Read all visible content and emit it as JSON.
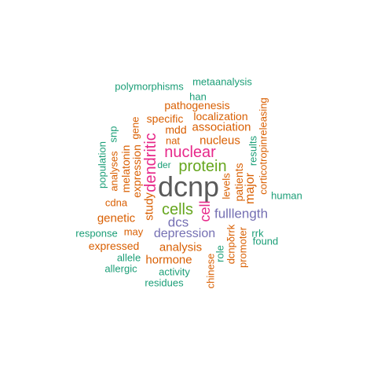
{
  "colors": {
    "gray": "#5a5a5a",
    "green": "#66a61e",
    "magenta": "#e7298a",
    "purple": "#7570b3",
    "orange": "#d95f02",
    "teal": "#1b9e77"
  },
  "words": [
    {
      "text": "dcnp",
      "color": "gray"
    },
    {
      "text": "protein",
      "color": "green"
    },
    {
      "text": "cells",
      "color": "green"
    },
    {
      "text": "nuclear",
      "color": "magenta"
    },
    {
      "text": "dendritic",
      "color": "magenta"
    },
    {
      "text": "cell",
      "color": "magenta"
    },
    {
      "text": "depression",
      "color": "purple"
    },
    {
      "text": "fulllength",
      "color": "purple"
    },
    {
      "text": "dcs",
      "color": "purple"
    },
    {
      "text": "polymorphisms",
      "color": "teal"
    },
    {
      "text": "metaanalysis",
      "color": "teal"
    },
    {
      "text": "han",
      "color": "teal"
    },
    {
      "text": "pathogenesis",
      "color": "orange"
    },
    {
      "text": "localization",
      "color": "orange"
    },
    {
      "text": "specific",
      "color": "orange"
    },
    {
      "text": "mdd",
      "color": "orange"
    },
    {
      "text": "association",
      "color": "orange"
    },
    {
      "text": "nat",
      "color": "orange"
    },
    {
      "text": "nucleus",
      "color": "orange"
    },
    {
      "text": "corticotropinreleasing",
      "color": "orange"
    },
    {
      "text": "gene",
      "color": "orange"
    },
    {
      "text": "snp",
      "color": "teal"
    },
    {
      "text": "population",
      "color": "teal"
    },
    {
      "text": "analyses",
      "color": "orange"
    },
    {
      "text": "melatonin",
      "color": "orange"
    },
    {
      "text": "expression",
      "color": "orange"
    },
    {
      "text": "der",
      "color": "teal"
    },
    {
      "text": "results",
      "color": "teal"
    },
    {
      "text": "patients",
      "color": "orange"
    },
    {
      "text": "major",
      "color": "orange"
    },
    {
      "text": "levels",
      "color": "orange"
    },
    {
      "text": "human",
      "color": "teal"
    },
    {
      "text": "cdna",
      "color": "orange"
    },
    {
      "text": "study",
      "color": "orange"
    },
    {
      "text": "genetic",
      "color": "orange"
    },
    {
      "text": "response",
      "color": "teal"
    },
    {
      "text": "may",
      "color": "orange"
    },
    {
      "text": "rrk",
      "color": "teal"
    },
    {
      "text": "found",
      "color": "teal"
    },
    {
      "text": "expressed",
      "color": "orange"
    },
    {
      "text": "analysis",
      "color": "orange"
    },
    {
      "text": "allele",
      "color": "teal"
    },
    {
      "text": "hormone",
      "color": "orange"
    },
    {
      "text": "allergic",
      "color": "teal"
    },
    {
      "text": "activity",
      "color": "teal"
    },
    {
      "text": "residues",
      "color": "teal"
    },
    {
      "text": "chinese",
      "color": "orange"
    },
    {
      "text": "role",
      "color": "teal"
    },
    {
      "text": "dcnpδrrk",
      "color": "orange"
    },
    {
      "text": "promoter",
      "color": "orange"
    }
  ]
}
